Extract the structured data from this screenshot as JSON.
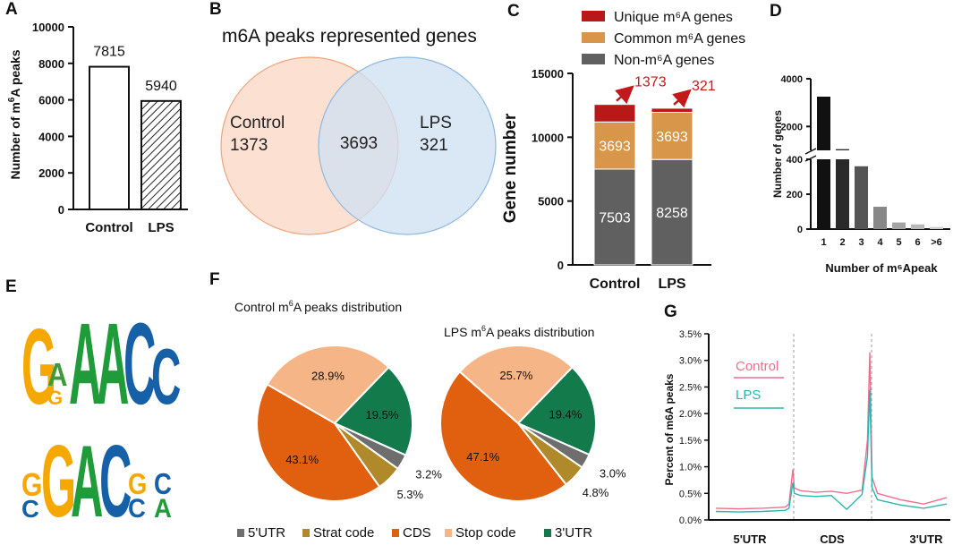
{
  "chart_data": [
    {
      "panel": "A",
      "type": "bar",
      "ylabel": "Number of m6A peaks",
      "ylim": [
        0,
        10000
      ],
      "yticks": [
        "0",
        "2000",
        "4000",
        "6000",
        "8000",
        "10000"
      ],
      "categories": [
        "Control",
        "LPS"
      ],
      "values": [
        7815,
        5940
      ],
      "value_labels": [
        "7815",
        "5940"
      ],
      "fills": [
        "#ffffff",
        "hatched"
      ]
    },
    {
      "panel": "B",
      "type": "venn",
      "title": "m6A peaks represented genes",
      "sets": [
        {
          "name": "Control",
          "only": "1373",
          "color": "#fbdccb"
        },
        {
          "name": "LPS",
          "only": "321",
          "color": "#cfe0f1"
        }
      ],
      "overlap": "3693"
    },
    {
      "panel": "C",
      "type": "stacked-bar",
      "ylabel": "Gene number",
      "ylim": [
        0,
        15000
      ],
      "yticks": [
        "0",
        "5000",
        "10000",
        "15000"
      ],
      "categories": [
        "Control",
        "LPS"
      ],
      "series": [
        {
          "name": "Non-m6A genes",
          "legend": "Non-m⁶A genes",
          "color": "#606060",
          "values": [
            7503,
            8258
          ],
          "labels": [
            "7503",
            "8258"
          ]
        },
        {
          "name": "Common m6A genes",
          "legend": "Common m⁶A genes",
          "color": "#d8964a",
          "values": [
            3693,
            3693
          ],
          "labels": [
            "3693",
            "3693"
          ]
        },
        {
          "name": "Unique m6A genes",
          "legend": "Unique m⁶A genes",
          "color": "#b81818",
          "values": [
            1373,
            321
          ],
          "labels": [
            "1373",
            "321"
          ]
        }
      ],
      "legend_order": [
        2,
        1,
        0
      ]
    },
    {
      "panel": "D",
      "type": "bar",
      "ylabel": "Number of genes",
      "xlabel": "Number of m⁶Apeak",
      "broken_axis": {
        "lower": [
          0,
          400
        ],
        "upper": [
          1000,
          4000
        ]
      },
      "yticks_lower": [
        "0",
        "200",
        "400"
      ],
      "yticks_upper": [
        "2000",
        "4000"
      ],
      "categories": [
        "1",
        "2",
        "3",
        "4",
        "5",
        "6",
        ">6"
      ],
      "values": [
        3250,
        1050,
        360,
        128,
        38,
        27,
        12
      ],
      "colors": [
        "#111111",
        "#2a2a2a",
        "#555555",
        "#888888",
        "#a4a4a4",
        "#b8b8b8",
        "#cccccc"
      ]
    },
    {
      "panel": "F",
      "type": "pie",
      "charts": [
        {
          "title_pre": "Control m",
          "title_post": "A peaks distribution",
          "sup": "6",
          "slices": [
            {
              "name": "5'UTR",
              "value": 3.2,
              "label": "3.2%"
            },
            {
              "name": "Strat code",
              "value": 5.3,
              "label": "5.3%"
            },
            {
              "name": "CDS",
              "value": 43.1,
              "label": "43.1%"
            },
            {
              "name": "Stop code",
              "value": 28.9,
              "label": "28.9%"
            },
            {
              "name": "3'UTR",
              "value": 19.5,
              "label": "19.5%"
            }
          ]
        },
        {
          "title_pre": "LPS m",
          "title_post": "A peaks distribution",
          "sup": "6",
          "slices": [
            {
              "name": "5'UTR",
              "value": 3.0,
              "label": "3.0%"
            },
            {
              "name": "Strat code",
              "value": 4.8,
              "label": "4.8%"
            },
            {
              "name": "CDS",
              "value": 47.1,
              "label": "47.1%"
            },
            {
              "name": "Stop code",
              "value": 25.7,
              "label": "25.7%"
            },
            {
              "name": "3'UTR",
              "value": 19.4,
              "label": "19.4%"
            }
          ]
        }
      ],
      "legend": [
        {
          "name": "5'UTR",
          "color": "#6e6e6e"
        },
        {
          "name": "Strat code",
          "color": "#b08a2a"
        },
        {
          "name": "CDS",
          "color": "#e0600f"
        },
        {
          "name": "Stop code",
          "color": "#f6b587"
        },
        {
          "name": "3'UTR",
          "color": "#127a4b"
        }
      ]
    },
    {
      "panel": "G",
      "type": "line",
      "ylabel": "Percent of m6A peaks",
      "ylim": [
        0,
        3.5
      ],
      "yticks": [
        "0.0%",
        "0.5%",
        "1.0%",
        "1.5%",
        "2.0%",
        "2.5%",
        "3.0%",
        "3.5%"
      ],
      "regions": [
        "5'UTR",
        "CDS",
        "3'UTR"
      ],
      "x": [
        0,
        0.3,
        0.6,
        0.9,
        0.95,
        1.0,
        1.02,
        1.1,
        1.3,
        1.5,
        1.7,
        1.9,
        1.97,
        2.0,
        2.03,
        2.1,
        2.4,
        2.7,
        3.0
      ],
      "series": [
        {
          "name": "Control",
          "color": "#ee6f8d",
          "values": [
            0.22,
            0.21,
            0.22,
            0.24,
            0.3,
            0.95,
            0.6,
            0.55,
            0.52,
            0.54,
            0.5,
            0.56,
            1.5,
            3.15,
            0.8,
            0.5,
            0.38,
            0.3,
            0.42
          ]
        },
        {
          "name": "LPS",
          "color": "#2ab5b0",
          "values": [
            0.16,
            0.15,
            0.16,
            0.18,
            0.22,
            0.7,
            0.5,
            0.46,
            0.44,
            0.46,
            0.2,
            0.48,
            1.2,
            2.45,
            0.6,
            0.38,
            0.28,
            0.22,
            0.3
          ]
        }
      ]
    }
  ],
  "panel_E": {
    "motif1": [
      "G",
      "A",
      "A",
      "A",
      "C",
      "C"
    ],
    "motif1_small": [
      "G"
    ],
    "motif2": [
      "G",
      "G",
      "A",
      "C",
      "G",
      "C"
    ],
    "motif2_small": [
      "C",
      "C",
      "A"
    ]
  },
  "panel_labels": [
    "A",
    "B",
    "C",
    "D",
    "E",
    "F",
    "G"
  ],
  "colors": {
    "dark": "#111111",
    "red_arrow": "#c01a1a"
  }
}
